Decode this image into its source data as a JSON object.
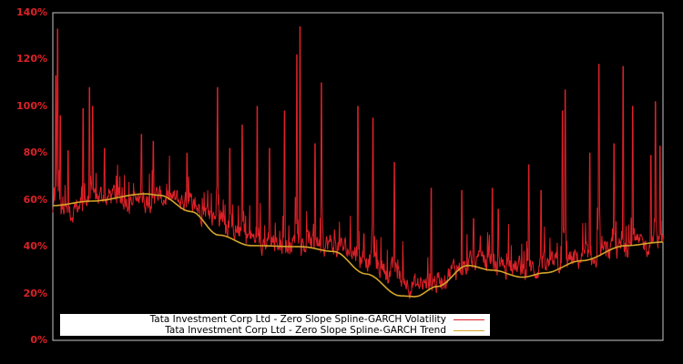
{
  "chart_data": {
    "type": "line",
    "title": "",
    "xlabel": "",
    "ylabel": "",
    "ylim": [
      0,
      140
    ],
    "y_ticks": [
      "0%",
      "20%",
      "40%",
      "60%",
      "80%",
      "100%",
      "120%",
      "140%"
    ],
    "x_ticks": [],
    "grid": false,
    "legend_position": "lower-left (inside plot)",
    "background": "#000000",
    "axis_color": "#c0c0c0",
    "tick_label_color": "#dd2128",
    "series": [
      {
        "name": "Tata Investment Corp Ltd - Zero Slope Spline-GARCH Volatility",
        "color": "#dd2128",
        "description": "Noisy daily volatility series; values approximated as lower envelope (base) plus spikes (x in 0..1 of time axis, value in %)",
        "base": [
          [
            0.0,
            50
          ],
          [
            0.03,
            46
          ],
          [
            0.06,
            52
          ],
          [
            0.1,
            53
          ],
          [
            0.14,
            50
          ],
          [
            0.18,
            52
          ],
          [
            0.22,
            50
          ],
          [
            0.26,
            45
          ],
          [
            0.3,
            38
          ],
          [
            0.34,
            33
          ],
          [
            0.38,
            32
          ],
          [
            0.42,
            33
          ],
          [
            0.46,
            32
          ],
          [
            0.5,
            28
          ],
          [
            0.54,
            22
          ],
          [
            0.58,
            16
          ],
          [
            0.6,
            14
          ],
          [
            0.63,
            16
          ],
          [
            0.66,
            22
          ],
          [
            0.7,
            24
          ],
          [
            0.74,
            23
          ],
          [
            0.78,
            21
          ],
          [
            0.82,
            23
          ],
          [
            0.86,
            26
          ],
          [
            0.9,
            28
          ],
          [
            0.94,
            31
          ],
          [
            0.97,
            32
          ],
          [
            1.0,
            33
          ]
        ],
        "spikes": [
          [
            0.005,
            113
          ],
          [
            0.008,
            133
          ],
          [
            0.012,
            96
          ],
          [
            0.025,
            81
          ],
          [
            0.05,
            99
          ],
          [
            0.06,
            108
          ],
          [
            0.065,
            100
          ],
          [
            0.085,
            82
          ],
          [
            0.145,
            88
          ],
          [
            0.165,
            85
          ],
          [
            0.22,
            80
          ],
          [
            0.27,
            108
          ],
          [
            0.29,
            82
          ],
          [
            0.31,
            92
          ],
          [
            0.335,
            100
          ],
          [
            0.355,
            82
          ],
          [
            0.38,
            98
          ],
          [
            0.4,
            122
          ],
          [
            0.405,
            134
          ],
          [
            0.43,
            84
          ],
          [
            0.44,
            110
          ],
          [
            0.5,
            100
          ],
          [
            0.525,
            95
          ],
          [
            0.56,
            76
          ],
          [
            0.62,
            65
          ],
          [
            0.67,
            64
          ],
          [
            0.69,
            52
          ],
          [
            0.72,
            65
          ],
          [
            0.73,
            56
          ],
          [
            0.78,
            75
          ],
          [
            0.8,
            64
          ],
          [
            0.835,
            98
          ],
          [
            0.84,
            107
          ],
          [
            0.88,
            80
          ],
          [
            0.895,
            118
          ],
          [
            0.92,
            84
          ],
          [
            0.935,
            117
          ],
          [
            0.95,
            100
          ],
          [
            0.98,
            79
          ],
          [
            0.988,
            102
          ],
          [
            0.995,
            83
          ]
        ]
      },
      {
        "name": "Tata Investment Corp Ltd - Zero Slope Spline-GARCH Trend",
        "color": "#d4a52a",
        "x": [
          0.0,
          0.063,
          0.152,
          0.175,
          0.227,
          0.272,
          0.325,
          0.407,
          0.46,
          0.513,
          0.57,
          0.594,
          0.63,
          0.68,
          0.72,
          0.77,
          0.806,
          0.866,
          0.94,
          1.0
        ],
        "values": [
          57.6,
          59.5,
          62.6,
          62.0,
          55.0,
          45.0,
          40.5,
          40.0,
          38.0,
          28.4,
          19.0,
          18.7,
          23.0,
          32.0,
          30.0,
          27.0,
          28.8,
          34.0,
          40.5,
          42.0
        ]
      }
    ]
  },
  "legend": {
    "volatility_label": "Tata Investment Corp Ltd - Zero Slope Spline-GARCH Volatility",
    "trend_label": "Tata Investment Corp Ltd - Zero Slope Spline-GARCH Trend"
  }
}
